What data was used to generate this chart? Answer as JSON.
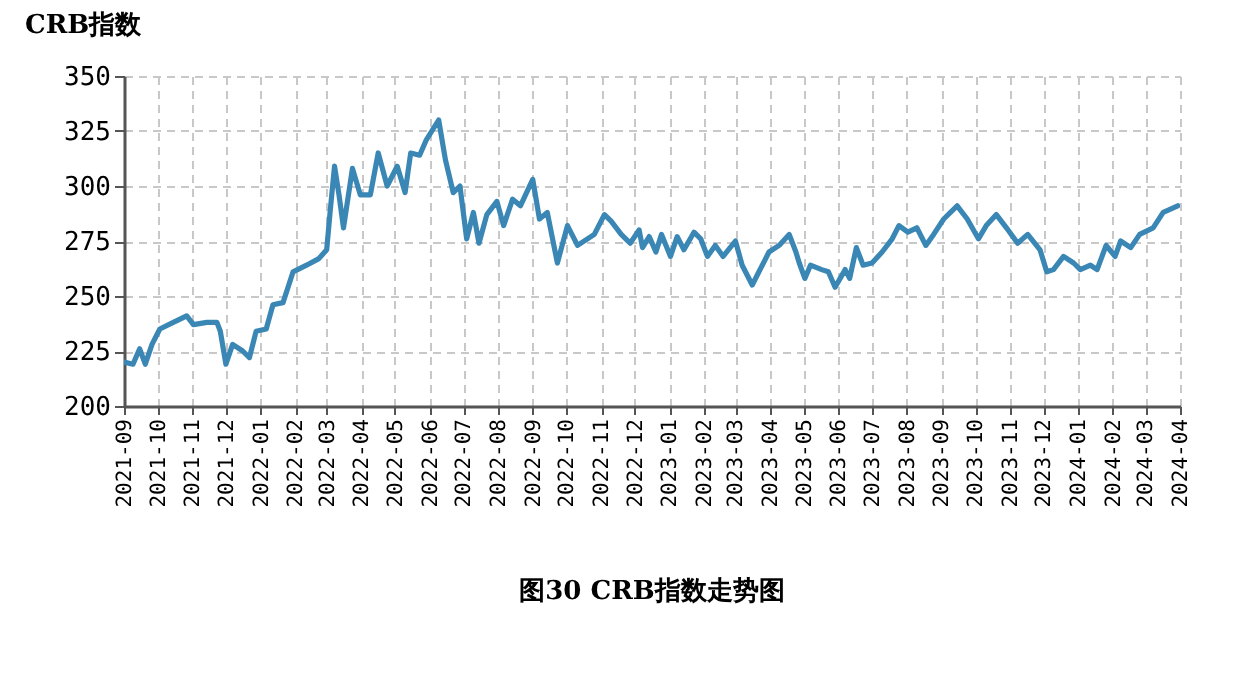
{
  "chart_data": {
    "type": "line",
    "title": "图30   CRB指数走势图",
    "ylabel": "CRB指数",
    "xlim": [
      "2021-09",
      "2024-04"
    ],
    "xticks": [
      "2021-09",
      "2021-10",
      "2021-11",
      "2021-12",
      "2022-01",
      "2022-02",
      "2022-03",
      "2022-04",
      "2022-05",
      "2022-06",
      "2022-07",
      "2022-08",
      "2022-09",
      "2022-10",
      "2022-11",
      "2022-12",
      "2023-01",
      "2023-02",
      "2023-03",
      "2023-04",
      "2023-05",
      "2023-06",
      "2023-07",
      "2023-08",
      "2023-09",
      "2023-10",
      "2023-11",
      "2023-12",
      "2024-01",
      "2024-02",
      "2024-03",
      "2024-04"
    ],
    "ylim": [
      200,
      350
    ],
    "yticks": [
      200,
      225,
      250,
      275,
      300,
      325,
      350
    ],
    "grid": true,
    "line_style": "solid",
    "series": [
      {
        "color": "#3a87b5",
        "x": [
          "2021-09-01",
          "2021-09-09",
          "2021-09-15",
          "2021-09-20",
          "2021-09-26",
          "2021-10-03",
          "2021-10-15",
          "2021-10-27",
          "2021-11-02",
          "2021-11-14",
          "2021-11-23",
          "2021-11-26",
          "2021-12-01",
          "2021-12-07",
          "2021-12-16",
          "2021-12-22",
          "2021-12-28",
          "2022-01-06",
          "2022-01-12",
          "2022-01-21",
          "2022-01-30",
          "2022-02-11",
          "2022-02-22",
          "2022-03-01",
          "2022-03-04",
          "2022-03-08",
          "2022-03-12",
          "2022-03-16",
          "2022-03-24",
          "2022-03-31",
          "2022-04-09",
          "2022-04-16",
          "2022-04-24",
          "2022-05-03",
          "2022-05-10",
          "2022-05-15",
          "2022-05-23",
          "2022-05-29",
          "2022-06-09",
          "2022-06-15",
          "2022-06-22",
          "2022-06-28",
          "2022-07-04",
          "2022-07-10",
          "2022-07-15",
          "2022-07-22",
          "2022-07-31",
          "2022-08-06",
          "2022-08-14",
          "2022-08-21",
          "2022-09-01",
          "2022-09-07",
          "2022-09-14",
          "2022-09-23",
          "2022-10-02",
          "2022-10-11",
          "2022-10-26",
          "2022-11-04",
          "2022-11-10",
          "2022-11-19",
          "2022-11-27",
          "2022-12-05",
          "2022-12-08",
          "2022-12-14",
          "2022-12-20",
          "2022-12-25",
          "2023-01-02",
          "2023-01-08",
          "2023-01-14",
          "2023-01-23",
          "2023-01-29",
          "2023-02-04",
          "2023-02-11",
          "2023-02-18",
          "2023-03-01",
          "2023-03-07",
          "2023-03-16",
          "2023-03-22",
          "2023-03-31",
          "2023-04-09",
          "2023-04-18",
          "2023-04-24",
          "2023-04-27",
          "2023-05-02",
          "2023-05-07",
          "2023-05-17",
          "2023-05-23",
          "2023-05-29",
          "2023-06-07",
          "2023-06-11",
          "2023-06-17",
          "2023-06-23",
          "2023-07-01",
          "2023-07-10",
          "2023-07-19",
          "2023-07-25",
          "2023-08-02",
          "2023-08-10",
          "2023-08-18",
          "2023-08-25",
          "2023-09-03",
          "2023-09-15",
          "2023-09-24",
          "2023-10-04",
          "2023-10-11",
          "2023-10-20",
          "2023-10-29",
          "2023-11-08",
          "2023-11-17",
          "2023-11-28",
          "2023-12-04",
          "2023-12-10",
          "2023-12-19",
          "2023-12-28",
          "2024-01-03",
          "2024-01-12",
          "2024-01-18",
          "2024-01-26",
          "2024-02-03",
          "2024-02-08",
          "2024-02-17",
          "2024-02-25",
          "2024-03-08",
          "2024-03-17",
          "2024-03-30"
        ],
        "values": [
          220,
          219,
          226,
          219,
          228,
          235,
          238,
          241,
          237,
          238,
          238,
          234,
          219,
          228,
          225,
          222,
          234,
          235,
          246,
          247,
          261,
          264,
          267,
          271,
          288,
          309,
          296,
          281,
          308,
          296,
          296,
          315,
          300,
          309,
          297,
          315,
          314,
          321,
          330,
          312,
          297,
          300,
          276,
          288,
          274,
          287,
          293,
          282,
          294,
          291,
          303,
          285,
          288,
          265,
          282,
          273,
          278,
          287,
          284,
          278,
          274,
          280,
          272,
          277,
          270,
          278,
          268,
          277,
          271,
          279,
          276,
          268,
          273,
          268,
          275,
          264,
          255,
          261,
          270,
          273,
          278,
          270,
          265,
          258,
          264,
          262,
          261,
          254,
          262,
          258,
          272,
          264,
          265,
          270,
          276,
          282,
          279,
          281,
          273,
          278,
          285,
          291,
          285,
          276,
          282,
          287,
          281,
          274,
          278,
          271,
          261,
          262,
          268,
          265,
          262,
          264,
          262,
          273,
          268,
          275,
          272,
          278,
          281,
          288,
          291
        ]
      }
    ]
  }
}
